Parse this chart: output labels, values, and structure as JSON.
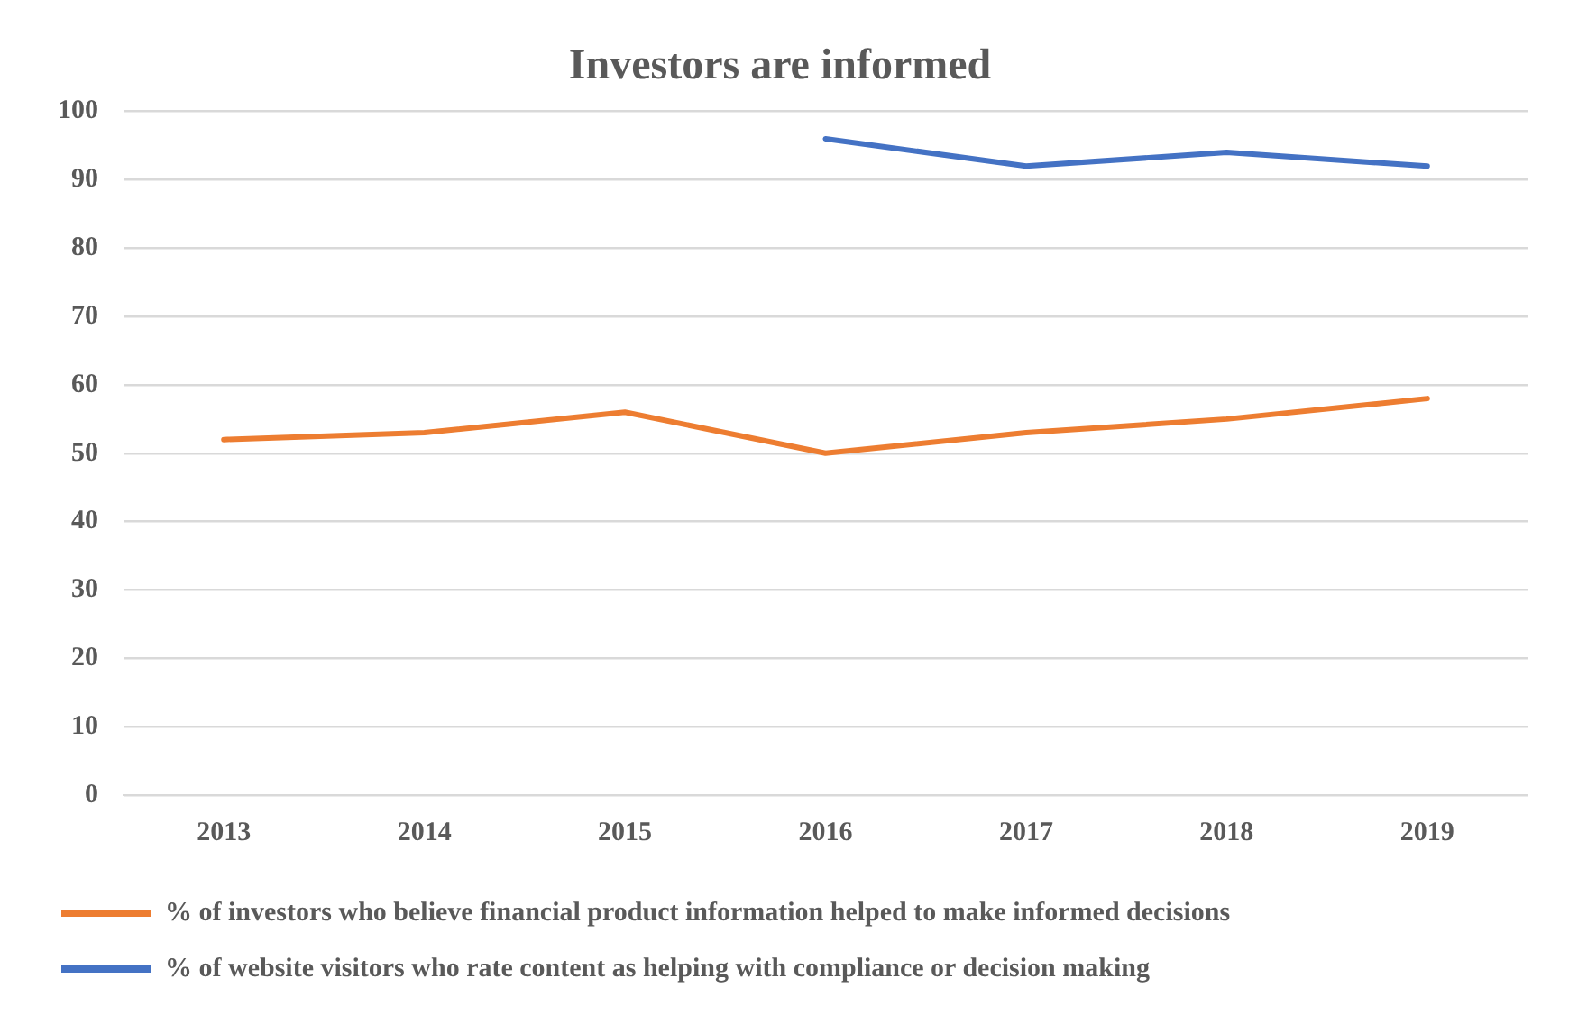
{
  "chart_data": {
    "type": "line",
    "title": "Investors are informed",
    "categories": [
      "2013",
      "2014",
      "2015",
      "2016",
      "2017",
      "2018",
      "2019"
    ],
    "series": [
      {
        "name": "% of investors who believe financial product information helped to make informed decisions",
        "color": "#ed7d31",
        "values": [
          52,
          53,
          56,
          50,
          53,
          55,
          58
        ]
      },
      {
        "name": "% of website visitors who rate content as helping with compliance or decision making",
        "color": "#4472c4",
        "values": [
          null,
          null,
          null,
          96,
          92,
          94,
          92
        ]
      }
    ],
    "ylim": [
      0,
      100
    ],
    "yticks": [
      0,
      10,
      20,
      30,
      40,
      50,
      60,
      70,
      80,
      90,
      100
    ],
    "grid": "y",
    "legend": "bottom",
    "marker": "none",
    "line_style": "solid"
  }
}
